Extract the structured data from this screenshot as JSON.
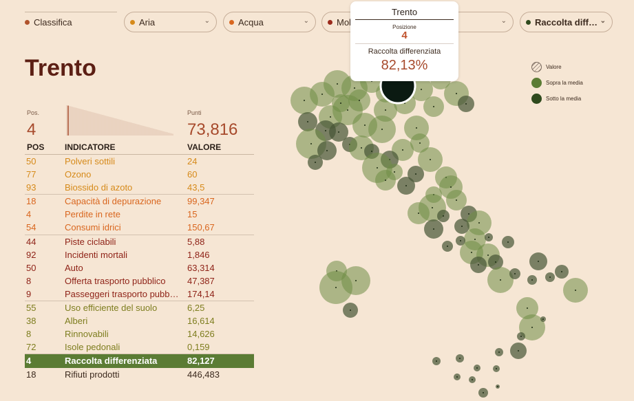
{
  "tabs": [
    {
      "label": "Classifica",
      "dot": "#b0532c"
    },
    {
      "label": "Aria",
      "dot": "#d68a1a"
    },
    {
      "label": "Acqua",
      "dot": "#d9661e"
    },
    {
      "label": "Mob",
      "dot": "#9b2a1c"
    },
    {
      "label": "",
      "dot": ""
    },
    {
      "label": "Raccolta diff…",
      "dot": "#2f4a1d"
    }
  ],
  "tooltip": {
    "city": "Trento",
    "pos_label": "Posizione",
    "pos": "4",
    "indicator": "Raccolta differenziata",
    "value": "82,13%"
  },
  "summary": {
    "city": "Trento",
    "pos_label": "Pos.",
    "pos": "4",
    "punti_label": "Punti",
    "punti": "73,816"
  },
  "table": {
    "headers": {
      "pos": "POS",
      "indicatore": "INDICATORE",
      "valore": "VALORE"
    },
    "rows": [
      {
        "pos": "50",
        "name": "Polveri sottili",
        "value": "24",
        "color": "#d68a1a",
        "sep": false
      },
      {
        "pos": "77",
        "name": "Ozono",
        "value": "60",
        "color": "#d68a1a",
        "sep": false
      },
      {
        "pos": "93",
        "name": "Biossido di azoto",
        "value": "43,5",
        "color": "#d68a1a",
        "sep": false
      },
      {
        "pos": "18",
        "name": "Capacità di depurazione",
        "value": "99,347",
        "color": "#d9661e",
        "sep": true
      },
      {
        "pos": "4",
        "name": "Perdite in rete",
        "value": "15",
        "color": "#d9661e",
        "sep": false
      },
      {
        "pos": "54",
        "name": "Consumi idrici",
        "value": "150,67",
        "color": "#d9661e",
        "sep": false
      },
      {
        "pos": "44",
        "name": "Piste ciclabili",
        "value": "5,88",
        "color": "#8f2318",
        "sep": true
      },
      {
        "pos": "92",
        "name": "Incidenti mortali",
        "value": "1,846",
        "color": "#8f2318",
        "sep": false
      },
      {
        "pos": "50",
        "name": "Auto",
        "value": "63,314",
        "color": "#8f2318",
        "sep": false
      },
      {
        "pos": "8",
        "name": "Offerta trasporto pubblico",
        "value": "47,387",
        "color": "#8f2318",
        "sep": false
      },
      {
        "pos": "9",
        "name": "Passeggeri trasporto pubb…",
        "value": "174,14",
        "color": "#8f2318",
        "sep": false
      },
      {
        "pos": "55",
        "name": "Uso efficiente del suolo",
        "value": "6,25",
        "color": "#7d7d1e",
        "sep": true
      },
      {
        "pos": "38",
        "name": "Alberi",
        "value": "16,614",
        "color": "#7d7d1e",
        "sep": false
      },
      {
        "pos": "8",
        "name": "Rinnovabili",
        "value": "14,626",
        "color": "#7d7d1e",
        "sep": false
      },
      {
        "pos": "72",
        "name": "Isole pedonali",
        "value": "0,159",
        "color": "#7d7d1e",
        "sep": false
      },
      {
        "pos": "4",
        "name": "Raccolta differenziata",
        "value": "82,127",
        "color": "#ffffff",
        "sep": true,
        "highlight": true
      },
      {
        "pos": "18",
        "name": "Rifiuti prodotti",
        "value": "446,483",
        "color": "#3c2a1e",
        "sep": false
      }
    ]
  },
  "legend": [
    {
      "label": "Valore",
      "kind": "outline"
    },
    {
      "label": "Sopra la media",
      "kind": "#5b7c34"
    },
    {
      "label": "Sotto la media",
      "kind": "#2f4a1d"
    }
  ],
  "colors": {
    "above": "#5b7c34",
    "below": "#2f4a1d",
    "highlight": "#0b1a12"
  }
}
